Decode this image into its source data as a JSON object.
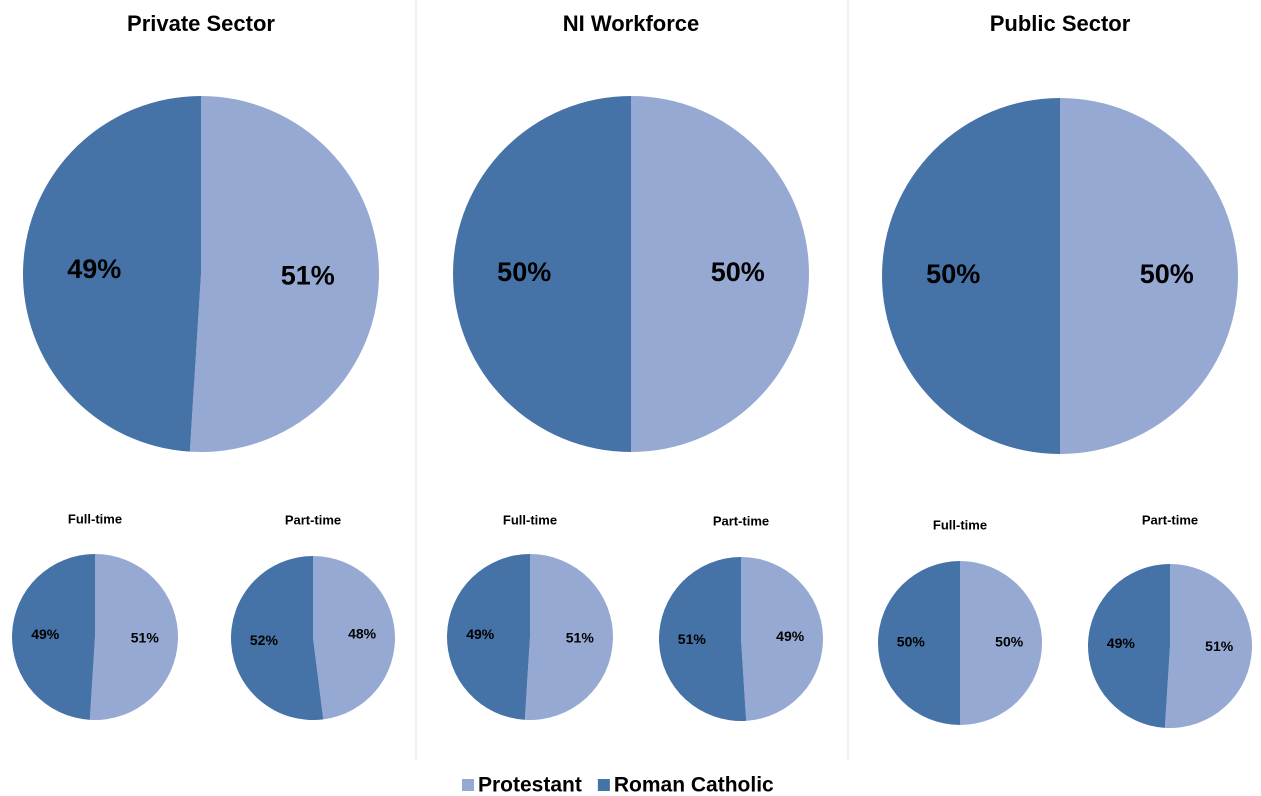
{
  "chart_data": [
    {
      "type": "pie",
      "title": "Private Sector",
      "values": [
        51,
        49
      ],
      "value_labels": [
        "51%",
        "49%"
      ]
    },
    {
      "type": "pie",
      "title": "NI Workforce",
      "values": [
        50,
        50
      ],
      "value_labels": [
        "50%",
        "50%"
      ]
    },
    {
      "type": "pie",
      "title": "Public Sector",
      "values": [
        50,
        50
      ],
      "value_labels": [
        "50%",
        "50%"
      ]
    },
    {
      "type": "pie",
      "title": "Full-time",
      "values": [
        51,
        49
      ],
      "value_labels": [
        "51%",
        "49%"
      ]
    },
    {
      "type": "pie",
      "title": "Part-time",
      "values": [
        48,
        52
      ],
      "value_labels": [
        "48%",
        "52%"
      ]
    },
    {
      "type": "pie",
      "title": "Full-time",
      "values": [
        51,
        49
      ],
      "value_labels": [
        "51%",
        "49%"
      ]
    },
    {
      "type": "pie",
      "title": "Part-time",
      "values": [
        49,
        51
      ],
      "value_labels": [
        "49%",
        "51%"
      ]
    },
    {
      "type": "pie",
      "title": "Full-time",
      "values": [
        50,
        50
      ],
      "value_labels": [
        "50%",
        "50%"
      ]
    },
    {
      "type": "pie",
      "title": "Part-time",
      "values": [
        51,
        49
      ],
      "value_labels": [
        "51%",
        "49%"
      ]
    }
  ],
  "legend": [
    {
      "name": "Protestant",
      "color": "#95a9d3"
    },
    {
      "name": "Roman Catholic",
      "color": "#4572a7"
    }
  ]
}
